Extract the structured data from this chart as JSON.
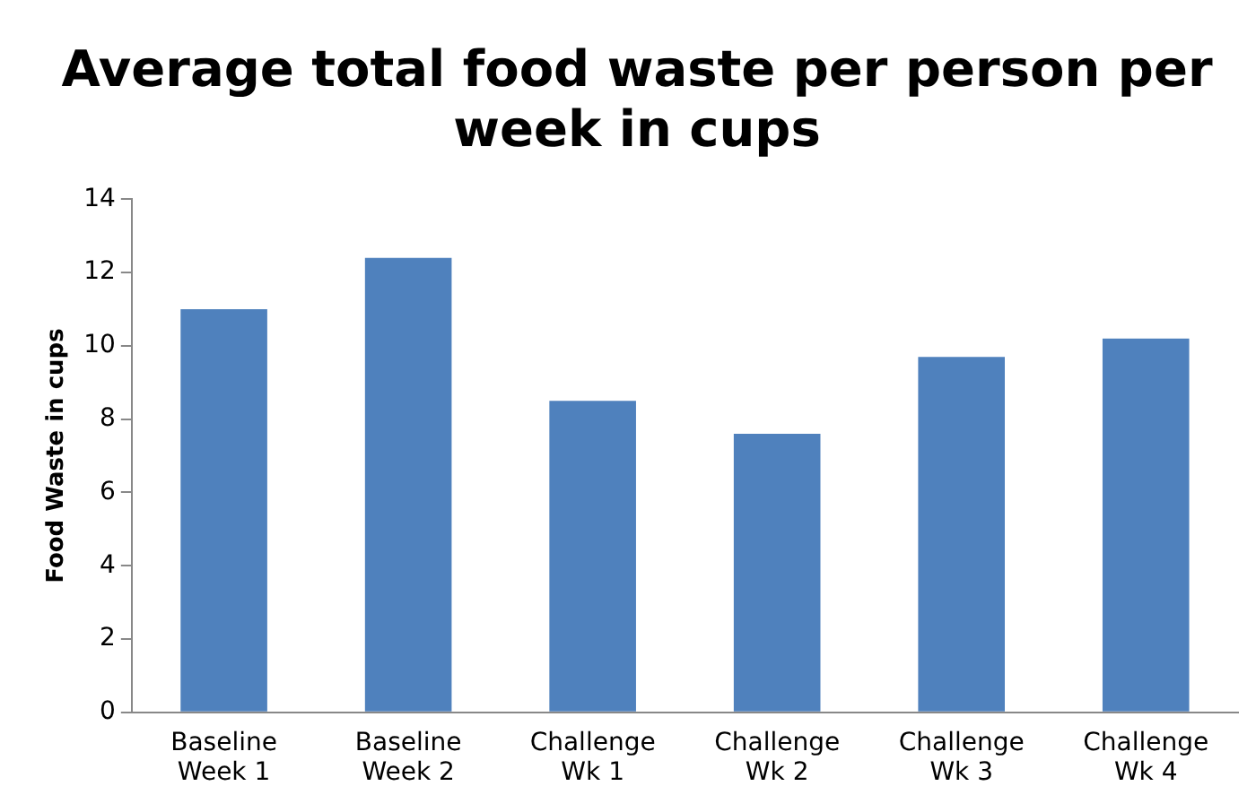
{
  "chart_data": {
    "type": "bar",
    "title": "Average total food waste per person per week in cups",
    "ylabel": "Food Waste in cups",
    "categories": [
      "Baseline Week 1",
      "Baseline Week 2",
      "Challenge Wk 1",
      "Challenge Wk 2",
      "Challenge Wk 3",
      "Challenge Wk 4"
    ],
    "values": [
      11,
      12.4,
      8.5,
      7.6,
      9.7,
      10.2
    ],
    "color": "#4f81bd",
    "ylim": [
      0,
      14
    ],
    "yticks": [
      0,
      2,
      4,
      6,
      8,
      10,
      12,
      14
    ],
    "grid": false,
    "legend": false
  }
}
